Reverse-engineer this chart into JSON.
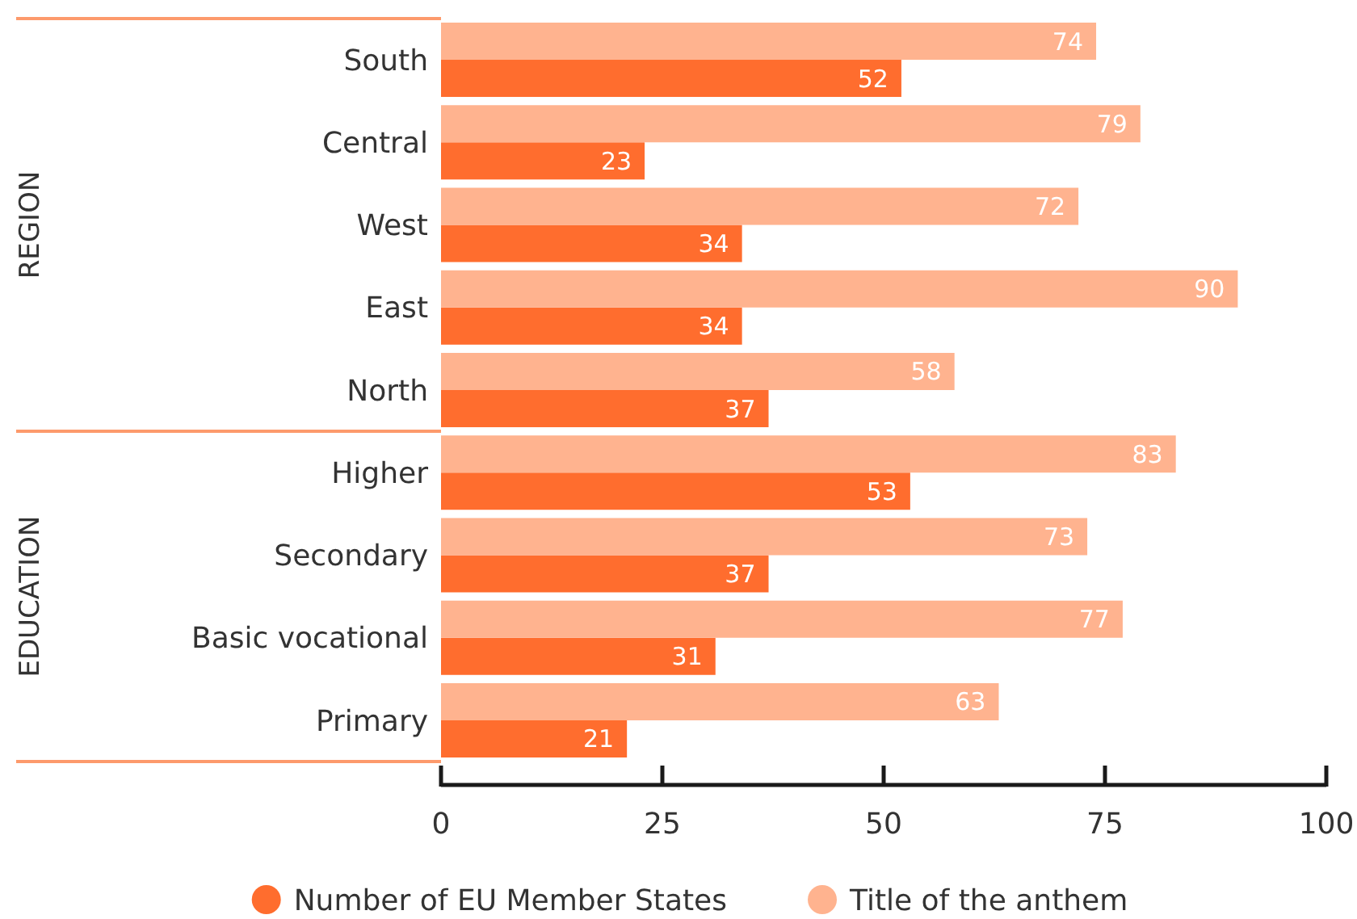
{
  "chart_data": {
    "type": "bar",
    "orientation": "horizontal",
    "categories": [
      "South",
      "Central",
      "West",
      "East",
      "North",
      "Higher",
      "Secondary",
      "Basic vocational",
      "Primary"
    ],
    "series": [
      {
        "name": "Number of EU Member States",
        "color": "#ff6d2e",
        "values": [
          52,
          23,
          34,
          34,
          37,
          53,
          37,
          31,
          21
        ]
      },
      {
        "name": "Title of the anthem",
        "color": "#ffb38f",
        "values": [
          74,
          79,
          72,
          90,
          58,
          83,
          73,
          77,
          63
        ]
      }
    ],
    "xlim": [
      0,
      100
    ],
    "xticks": [
      0,
      25,
      50,
      75,
      100
    ],
    "data_labels": true,
    "legend": "bottom",
    "annotations": [
      "REGION",
      "EDUCATION"
    ]
  }
}
